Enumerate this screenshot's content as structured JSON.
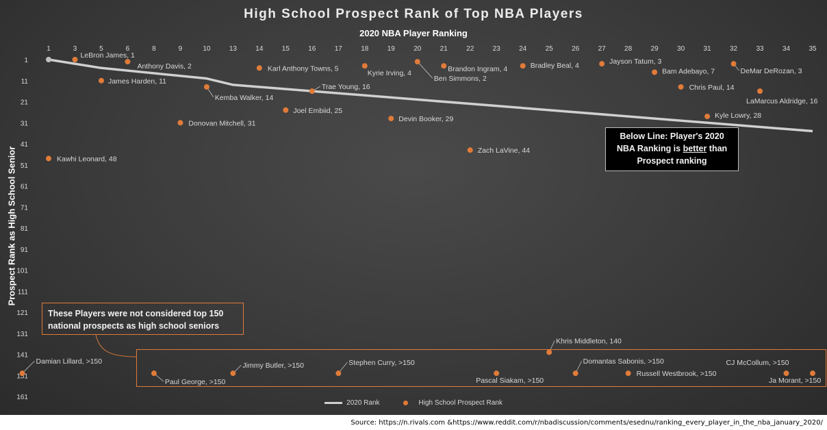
{
  "chart_data": {
    "type": "scatter",
    "title": "High School Prospect Rank of Top NBA Players",
    "xlabel": "2020 NBA Player Ranking",
    "ylabel": "Prospect Rank as High School Senior",
    "x_ticks": [
      "1",
      "3",
      "5",
      "6",
      "8",
      "9",
      "10",
      "13",
      "14",
      "15",
      "16",
      "17",
      "18",
      "19",
      "20",
      "21",
      "22",
      "23",
      "24",
      "25",
      "26",
      "27",
      "28",
      "29",
      "30",
      "31",
      "32",
      "33",
      "34",
      "35"
    ],
    "y_ticks": [
      1,
      11,
      21,
      31,
      41,
      51,
      61,
      71,
      81,
      91,
      101,
      111,
      121,
      131,
      141,
      151,
      161
    ],
    "ylim": [
      1,
      161
    ],
    "y_inverted": true,
    "grid": false,
    "legend_position": "bottom",
    "series": [
      {
        "name": "2020 Rank",
        "kind": "line",
        "color": "#d0d0d0",
        "points": [
          [
            1,
            1
          ],
          [
            5,
            5
          ],
          [
            10,
            10
          ],
          [
            13,
            13
          ],
          [
            35,
            35
          ]
        ]
      },
      {
        "name": "High School Prospect Rank",
        "kind": "scatter",
        "color": "#e07b39",
        "points": [
          {
            "x": 1,
            "y": 48,
            "label": "Kawhi Leonard, 48"
          },
          {
            "x": 3,
            "y": 1,
            "label": "LeBron James, 1"
          },
          {
            "x": 5,
            "y": 11,
            "label": "James Harden, 11"
          },
          {
            "x": 6,
            "y": 2,
            "label": "Anthony Davis, 2"
          },
          {
            "x": 8,
            "y": 150,
            "label": "Paul George, >150"
          },
          {
            "x": 9,
            "y": 31,
            "label": "Donovan Mitchell, 31"
          },
          {
            "x": 10,
            "y": 14,
            "label": "Kemba Walker, 14"
          },
          {
            "x": 13,
            "y": 150,
            "label": "Jimmy Butler, >150"
          },
          {
            "x": 14,
            "y": 5,
            "label": "Karl Anthony Towns, 5"
          },
          {
            "x": 15,
            "y": 25,
            "label": "Joel Embiid, 25"
          },
          {
            "x": 16,
            "y": 16,
            "label": "Trae Young, 16"
          },
          {
            "x": 17,
            "y": 150,
            "label": "Stephen Curry, >150"
          },
          {
            "x": 18,
            "y": 4,
            "label": "Kyrie Irving, 4"
          },
          {
            "x": 19,
            "y": 29,
            "label": "Devin Booker, 29"
          },
          {
            "x": 20,
            "y": 2,
            "label": "Ben Simmons, 2"
          },
          {
            "x": 21,
            "y": 4,
            "label": "Brandon Ingram, 4"
          },
          {
            "x": 22,
            "y": 44,
            "label": "Zach LaVine, 44"
          },
          {
            "x": 23,
            "y": 150,
            "label": "Pascal Siakam, >150"
          },
          {
            "x": 24,
            "y": 4,
            "label": "Bradley Beal, 4"
          },
          {
            "x": 25,
            "y": 140,
            "label": "Khris Middleton, 140"
          },
          {
            "x": 26,
            "y": 150,
            "label": "Domantas Sabonis, >150"
          },
          {
            "x": 27,
            "y": 3,
            "label": "Jayson Tatum, 3"
          },
          {
            "x": 28,
            "y": 150,
            "label": "Russell Westbrook, >150"
          },
          {
            "x": 29,
            "y": 7,
            "label": "Bam Adebayo, 7"
          },
          {
            "x": 30,
            "y": 14,
            "label": "Chris Paul, 14"
          },
          {
            "x": 31,
            "y": 28,
            "label": "Kyle Lowry, 28"
          },
          {
            "x": 32,
            "y": 3,
            "label": "DeMar DeRozan, 3"
          },
          {
            "x": 33,
            "y": 16,
            "label": "LaMarcus Aldridge, 16"
          },
          {
            "x": 34,
            "y": 150,
            "label": "CJ McCollum, >150"
          },
          {
            "x": 35,
            "y": 150,
            "label": "Ja Morant, >150"
          },
          {
            "x": 7,
            "y": 150,
            "label": "Damian Lillard, >150"
          }
        ]
      }
    ],
    "annotations": {
      "below_line_title": "Below Line: Player's 2020",
      "below_line_mid_a": "NBA Ranking is ",
      "below_line_mid_b": "better",
      "below_line_mid_c": " than",
      "below_line_end": "Prospect ranking",
      "not_top150_line1": "These Players were not considered top 150",
      "not_top150_line2": "national prospects as high school seniors"
    }
  },
  "legend": {
    "line_label": "2020 Rank",
    "dot_label": "High School Prospect Rank"
  },
  "source": "Source: https://n.rivals.com &https://www.reddit.com/r/nbadiscussion/comments/esednu/ranking_every_player_in_the_nba_january_2020/",
  "colors": {
    "background": "#3a3a3a",
    "accent": "#e07b39",
    "line": "#d0d0d0"
  }
}
